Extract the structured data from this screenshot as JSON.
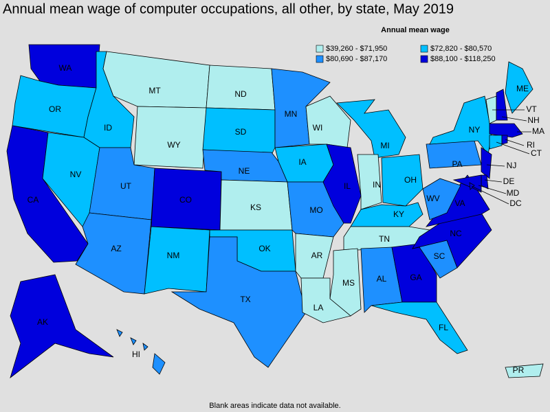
{
  "title": "Annual mean wage of computer occupations, all other, by state, May 2019",
  "legend": {
    "title": "Annual mean wage",
    "items": [
      {
        "label": "$39,260 - $71,950",
        "color": "#b0eeee"
      },
      {
        "label": "$72,820 - $80,570",
        "color": "#00bfff"
      },
      {
        "label": "$80,690 - $87,170",
        "color": "#1e90ff"
      },
      {
        "label": "$88,100 - $118,250",
        "color": "#0000dd"
      }
    ]
  },
  "states": [
    {
      "label": "WA",
      "color": "#0000dd"
    },
    {
      "label": "OR",
      "color": "#00bfff"
    },
    {
      "label": "CA",
      "color": "#0000dd"
    },
    {
      "label": "NV",
      "color": "#00bfff"
    },
    {
      "label": "ID",
      "color": "#00bfff"
    },
    {
      "label": "MT",
      "color": "#b0eeee"
    },
    {
      "label": "WY",
      "color": "#b0eeee"
    },
    {
      "label": "UT",
      "color": "#1e90ff"
    },
    {
      "label": "AZ",
      "color": "#1e90ff"
    },
    {
      "label": "CO",
      "color": "#0000dd"
    },
    {
      "label": "NM",
      "color": "#00bfff"
    },
    {
      "label": "ND",
      "color": "#b0eeee"
    },
    {
      "label": "SD",
      "color": "#00bfff"
    },
    {
      "label": "NE",
      "color": "#1e90ff"
    },
    {
      "label": "KS",
      "color": "#b0eeee"
    },
    {
      "label": "OK",
      "color": "#00bfff"
    },
    {
      "label": "TX",
      "color": "#1e90ff"
    },
    {
      "label": "MN",
      "color": "#1e90ff"
    },
    {
      "label": "IA",
      "color": "#00bfff"
    },
    {
      "label": "MO",
      "color": "#1e90ff"
    },
    {
      "label": "AR",
      "color": "#b0eeee"
    },
    {
      "label": "LA",
      "color": "#b0eeee"
    },
    {
      "label": "WI",
      "color": "#b0eeee"
    },
    {
      "label": "IL",
      "color": "#0000dd"
    },
    {
      "label": "MI",
      "color": "#00bfff"
    },
    {
      "label": "IN",
      "color": "#b0eeee"
    },
    {
      "label": "OH",
      "color": "#00bfff"
    },
    {
      "label": "KY",
      "color": "#00bfff"
    },
    {
      "label": "TN",
      "color": "#b0eeee"
    },
    {
      "label": "MS",
      "color": "#b0eeee"
    },
    {
      "label": "AL",
      "color": "#1e90ff"
    },
    {
      "label": "GA",
      "color": "#0000dd"
    },
    {
      "label": "FL",
      "color": "#00bfff"
    },
    {
      "label": "SC",
      "color": "#1e90ff"
    },
    {
      "label": "NC",
      "color": "#0000dd"
    },
    {
      "label": "VA",
      "color": "#0000dd"
    },
    {
      "label": "WV",
      "color": "#1e90ff"
    },
    {
      "label": "PA",
      "color": "#1e90ff"
    },
    {
      "label": "NY",
      "color": "#00bfff"
    },
    {
      "label": "VT",
      "color": "#b0eeee"
    },
    {
      "label": "NH",
      "color": "#0000dd"
    },
    {
      "label": "ME",
      "color": "#00bfff"
    },
    {
      "label": "MA",
      "color": "#0000dd"
    },
    {
      "label": "CT",
      "color": "#00bfff"
    },
    {
      "label": "RI",
      "color": "#0000dd"
    },
    {
      "label": "NJ",
      "color": "#0000dd"
    },
    {
      "label": "DE",
      "color": "#0000dd"
    },
    {
      "label": "MD",
      "color": "#0000dd"
    },
    {
      "label": "DC",
      "color": "#0000dd"
    },
    {
      "label": "AK",
      "color": "#0000dd"
    },
    {
      "label": "HI",
      "color": "#1e90ff"
    },
    {
      "label": "PR",
      "color": "#b0eeee"
    }
  ],
  "note": "Blank areas indicate data not available."
}
